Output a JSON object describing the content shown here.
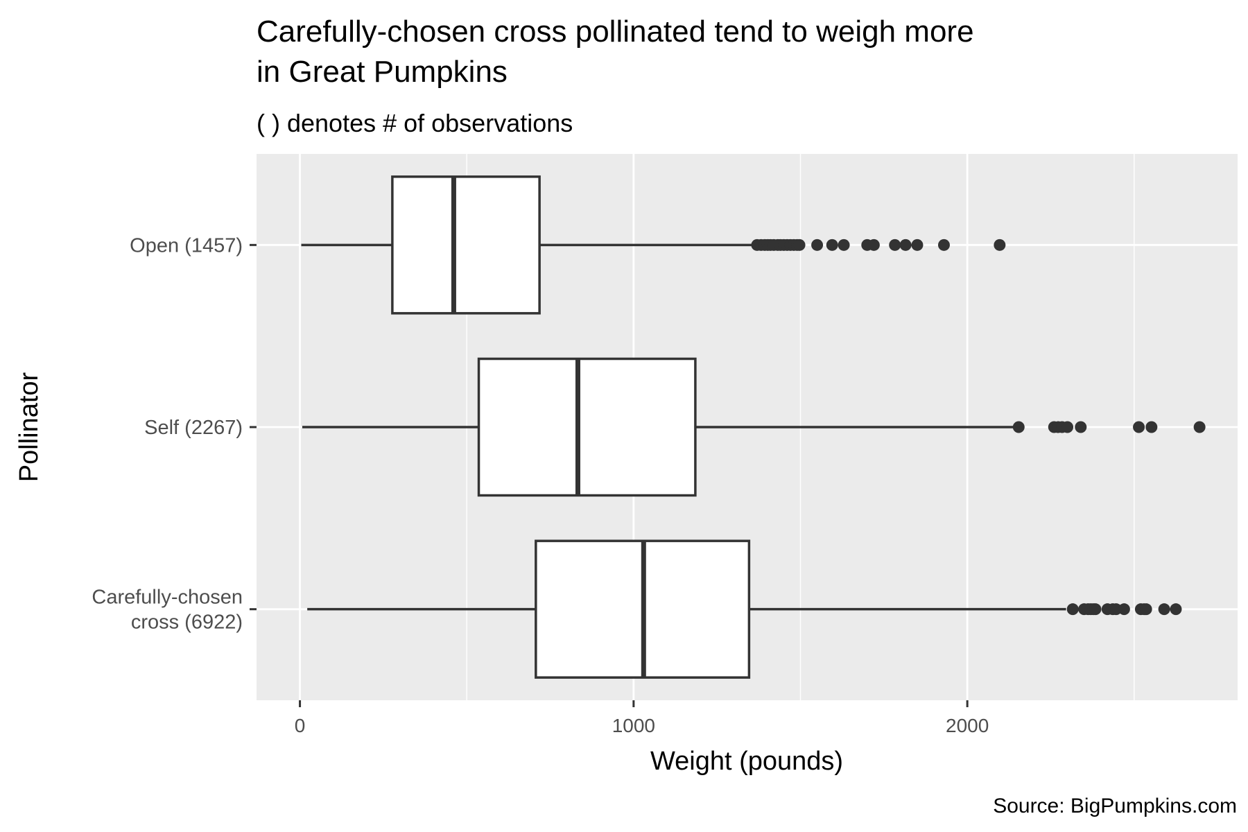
{
  "chart_data": {
    "type": "boxplot",
    "orientation": "horizontal",
    "title_lines": [
      "Carefully-chosen cross pollinated tend to weigh more",
      "in Great Pumpkins"
    ],
    "subtitle": "( ) denotes # of observations",
    "xlabel": "Weight (pounds)",
    "ylabel": "Pollinator",
    "caption": "Source: BigPumpkins.com",
    "xlim": [
      -130,
      2810
    ],
    "xticks": [
      0,
      1000,
      2000
    ],
    "xtick_labels": [
      "0",
      "1000",
      "2000"
    ],
    "grid": true,
    "background": "#ebebeb",
    "box_fill": "#ffffff",
    "line_color": "#333333",
    "categories": [
      {
        "label_lines": [
          "Carefully-chosen",
          "cross (6922)"
        ],
        "whisker_low": 22,
        "q1": 707,
        "median": 1030,
        "q3": 1346,
        "whisker_high": 2296,
        "outliers": [
          2316,
          2350,
          2362,
          2370,
          2378,
          2384,
          2420,
          2436,
          2446,
          2470,
          2520,
          2530,
          2536,
          2590,
          2625
        ]
      },
      {
        "label_lines": [
          "Self (2267)"
        ],
        "whisker_low": 7,
        "q1": 536,
        "median": 833,
        "q3": 1185,
        "whisker_high": 2154,
        "outliers": [
          2154,
          2260,
          2272,
          2284,
          2300,
          2340,
          2514,
          2552,
          2696
        ]
      },
      {
        "label_lines": [
          "Open (1457)"
        ],
        "whisker_low": 4,
        "q1": 277,
        "median": 461,
        "q3": 718,
        "whisker_high": 1370,
        "outliers": [
          1370,
          1382,
          1393,
          1402,
          1410,
          1420,
          1432,
          1440,
          1450,
          1460,
          1470,
          1480,
          1490,
          1497,
          1550,
          1595,
          1630,
          1700,
          1720,
          1783,
          1815,
          1850,
          1930,
          2097
        ]
      }
    ]
  }
}
